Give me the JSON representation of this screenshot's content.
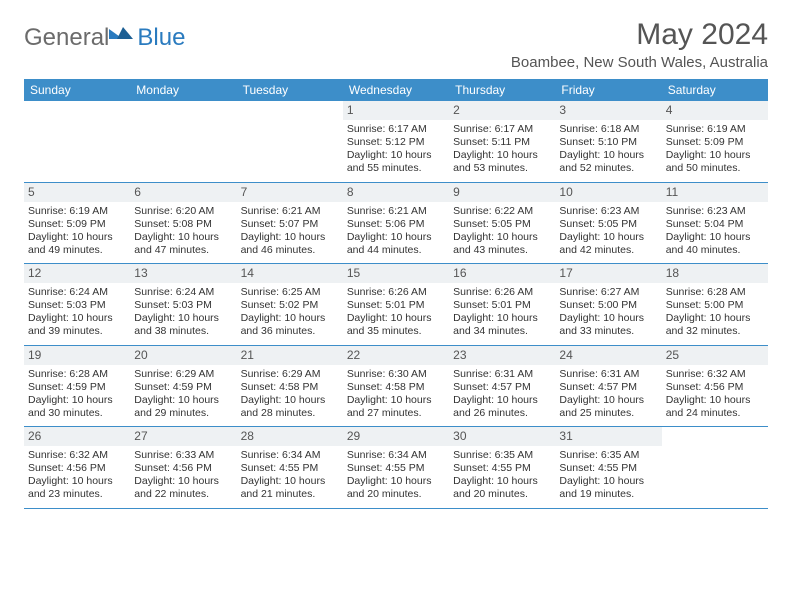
{
  "brand": {
    "part1": "General",
    "part2": "Blue"
  },
  "title": "May 2024",
  "location": "Boambee, New South Wales, Australia",
  "colors": {
    "header_bg": "#3d8ec9",
    "daynum_bg": "#eef1f3",
    "rule": "#3d8ec9",
    "text": "#333333",
    "muted": "#555555",
    "brand_gray": "#6b6b6b",
    "brand_blue": "#2a7bbf"
  },
  "day_names": [
    "Sunday",
    "Monday",
    "Tuesday",
    "Wednesday",
    "Thursday",
    "Friday",
    "Saturday"
  ],
  "weeks": [
    [
      null,
      null,
      null,
      {
        "n": 1,
        "rise": "6:17 AM",
        "set": "5:12 PM",
        "day": "10 hours and 55 minutes."
      },
      {
        "n": 2,
        "rise": "6:17 AM",
        "set": "5:11 PM",
        "day": "10 hours and 53 minutes."
      },
      {
        "n": 3,
        "rise": "6:18 AM",
        "set": "5:10 PM",
        "day": "10 hours and 52 minutes."
      },
      {
        "n": 4,
        "rise": "6:19 AM",
        "set": "5:09 PM",
        "day": "10 hours and 50 minutes."
      }
    ],
    [
      {
        "n": 5,
        "rise": "6:19 AM",
        "set": "5:09 PM",
        "day": "10 hours and 49 minutes."
      },
      {
        "n": 6,
        "rise": "6:20 AM",
        "set": "5:08 PM",
        "day": "10 hours and 47 minutes."
      },
      {
        "n": 7,
        "rise": "6:21 AM",
        "set": "5:07 PM",
        "day": "10 hours and 46 minutes."
      },
      {
        "n": 8,
        "rise": "6:21 AM",
        "set": "5:06 PM",
        "day": "10 hours and 44 minutes."
      },
      {
        "n": 9,
        "rise": "6:22 AM",
        "set": "5:05 PM",
        "day": "10 hours and 43 minutes."
      },
      {
        "n": 10,
        "rise": "6:23 AM",
        "set": "5:05 PM",
        "day": "10 hours and 42 minutes."
      },
      {
        "n": 11,
        "rise": "6:23 AM",
        "set": "5:04 PM",
        "day": "10 hours and 40 minutes."
      }
    ],
    [
      {
        "n": 12,
        "rise": "6:24 AM",
        "set": "5:03 PM",
        "day": "10 hours and 39 minutes."
      },
      {
        "n": 13,
        "rise": "6:24 AM",
        "set": "5:03 PM",
        "day": "10 hours and 38 minutes."
      },
      {
        "n": 14,
        "rise": "6:25 AM",
        "set": "5:02 PM",
        "day": "10 hours and 36 minutes."
      },
      {
        "n": 15,
        "rise": "6:26 AM",
        "set": "5:01 PM",
        "day": "10 hours and 35 minutes."
      },
      {
        "n": 16,
        "rise": "6:26 AM",
        "set": "5:01 PM",
        "day": "10 hours and 34 minutes."
      },
      {
        "n": 17,
        "rise": "6:27 AM",
        "set": "5:00 PM",
        "day": "10 hours and 33 minutes."
      },
      {
        "n": 18,
        "rise": "6:28 AM",
        "set": "5:00 PM",
        "day": "10 hours and 32 minutes."
      }
    ],
    [
      {
        "n": 19,
        "rise": "6:28 AM",
        "set": "4:59 PM",
        "day": "10 hours and 30 minutes."
      },
      {
        "n": 20,
        "rise": "6:29 AM",
        "set": "4:59 PM",
        "day": "10 hours and 29 minutes."
      },
      {
        "n": 21,
        "rise": "6:29 AM",
        "set": "4:58 PM",
        "day": "10 hours and 28 minutes."
      },
      {
        "n": 22,
        "rise": "6:30 AM",
        "set": "4:58 PM",
        "day": "10 hours and 27 minutes."
      },
      {
        "n": 23,
        "rise": "6:31 AM",
        "set": "4:57 PM",
        "day": "10 hours and 26 minutes."
      },
      {
        "n": 24,
        "rise": "6:31 AM",
        "set": "4:57 PM",
        "day": "10 hours and 25 minutes."
      },
      {
        "n": 25,
        "rise": "6:32 AM",
        "set": "4:56 PM",
        "day": "10 hours and 24 minutes."
      }
    ],
    [
      {
        "n": 26,
        "rise": "6:32 AM",
        "set": "4:56 PM",
        "day": "10 hours and 23 minutes."
      },
      {
        "n": 27,
        "rise": "6:33 AM",
        "set": "4:56 PM",
        "day": "10 hours and 22 minutes."
      },
      {
        "n": 28,
        "rise": "6:34 AM",
        "set": "4:55 PM",
        "day": "10 hours and 21 minutes."
      },
      {
        "n": 29,
        "rise": "6:34 AM",
        "set": "4:55 PM",
        "day": "10 hours and 20 minutes."
      },
      {
        "n": 30,
        "rise": "6:35 AM",
        "set": "4:55 PM",
        "day": "10 hours and 20 minutes."
      },
      {
        "n": 31,
        "rise": "6:35 AM",
        "set": "4:55 PM",
        "day": "10 hours and 19 minutes."
      },
      null
    ]
  ],
  "labels": {
    "sunrise": "Sunrise:",
    "sunset": "Sunset:",
    "daylight": "Daylight:"
  }
}
